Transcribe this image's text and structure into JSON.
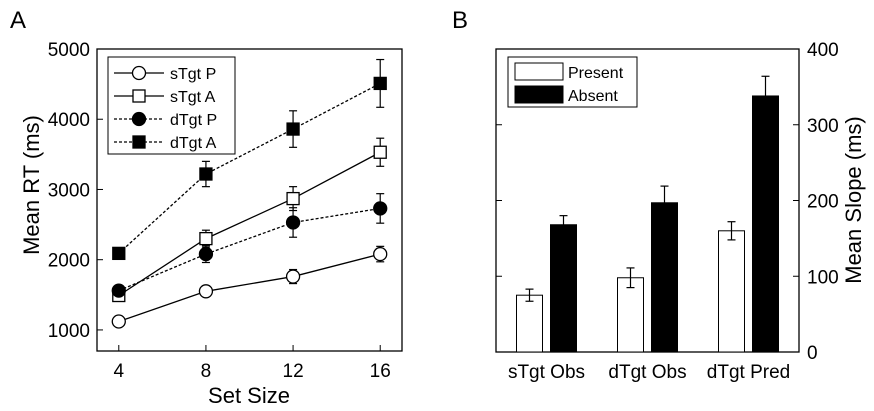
{
  "chart_data": [
    {
      "panel": "A",
      "type": "line",
      "xlabel": "Set Size",
      "ylabel": "Mean RT (ms)",
      "x": [
        4,
        8,
        12,
        16
      ],
      "xlim": [
        3,
        17
      ],
      "ylim": [
        700,
        5000
      ],
      "xticks": [
        "4",
        "8",
        "12",
        "16"
      ],
      "yticks": [
        "1000",
        "2000",
        "3000",
        "4000",
        "5000"
      ],
      "grid": false,
      "legend_position": "top-left",
      "series": [
        {
          "name": "sTgt P",
          "values": [
            1120,
            1550,
            1760,
            2080
          ],
          "errors": [
            50,
            60,
            100,
            110
          ],
          "marker": "circle-open",
          "line": "solid"
        },
        {
          "name": "sTgt A",
          "values": [
            1490,
            2300,
            2870,
            3530
          ],
          "errors": [
            70,
            120,
            170,
            200
          ],
          "marker": "square-open",
          "line": "solid"
        },
        {
          "name": "dTgt P",
          "values": [
            1560,
            2080,
            2530,
            2730
          ],
          "errors": [
            70,
            120,
            210,
            210
          ],
          "marker": "circle-filled",
          "line": "dotted"
        },
        {
          "name": "dTgt A",
          "values": [
            2090,
            3220,
            3860,
            4510
          ],
          "errors": [
            70,
            180,
            260,
            340
          ],
          "marker": "square-filled",
          "line": "dotted"
        }
      ]
    },
    {
      "panel": "B",
      "type": "bar",
      "xlabel": "",
      "ylabel": "Mean Slope (ms)",
      "categories": [
        "sTgt Obs",
        "dTgt Obs",
        "dTgt Pred"
      ],
      "ylim": [
        0,
        400
      ],
      "yticks": [
        "0",
        "100",
        "200",
        "300",
        "400"
      ],
      "y_axis_side": "right",
      "grid": false,
      "legend_position": "top-left",
      "series": [
        {
          "name": "Present",
          "values": [
            75,
            98,
            160
          ],
          "errors": [
            8,
            13,
            12
          ],
          "color": "#ffffff"
        },
        {
          "name": "Absent",
          "values": [
            168,
            197,
            338
          ],
          "errors": [
            12,
            22,
            26
          ],
          "color": "#000000"
        }
      ]
    }
  ]
}
